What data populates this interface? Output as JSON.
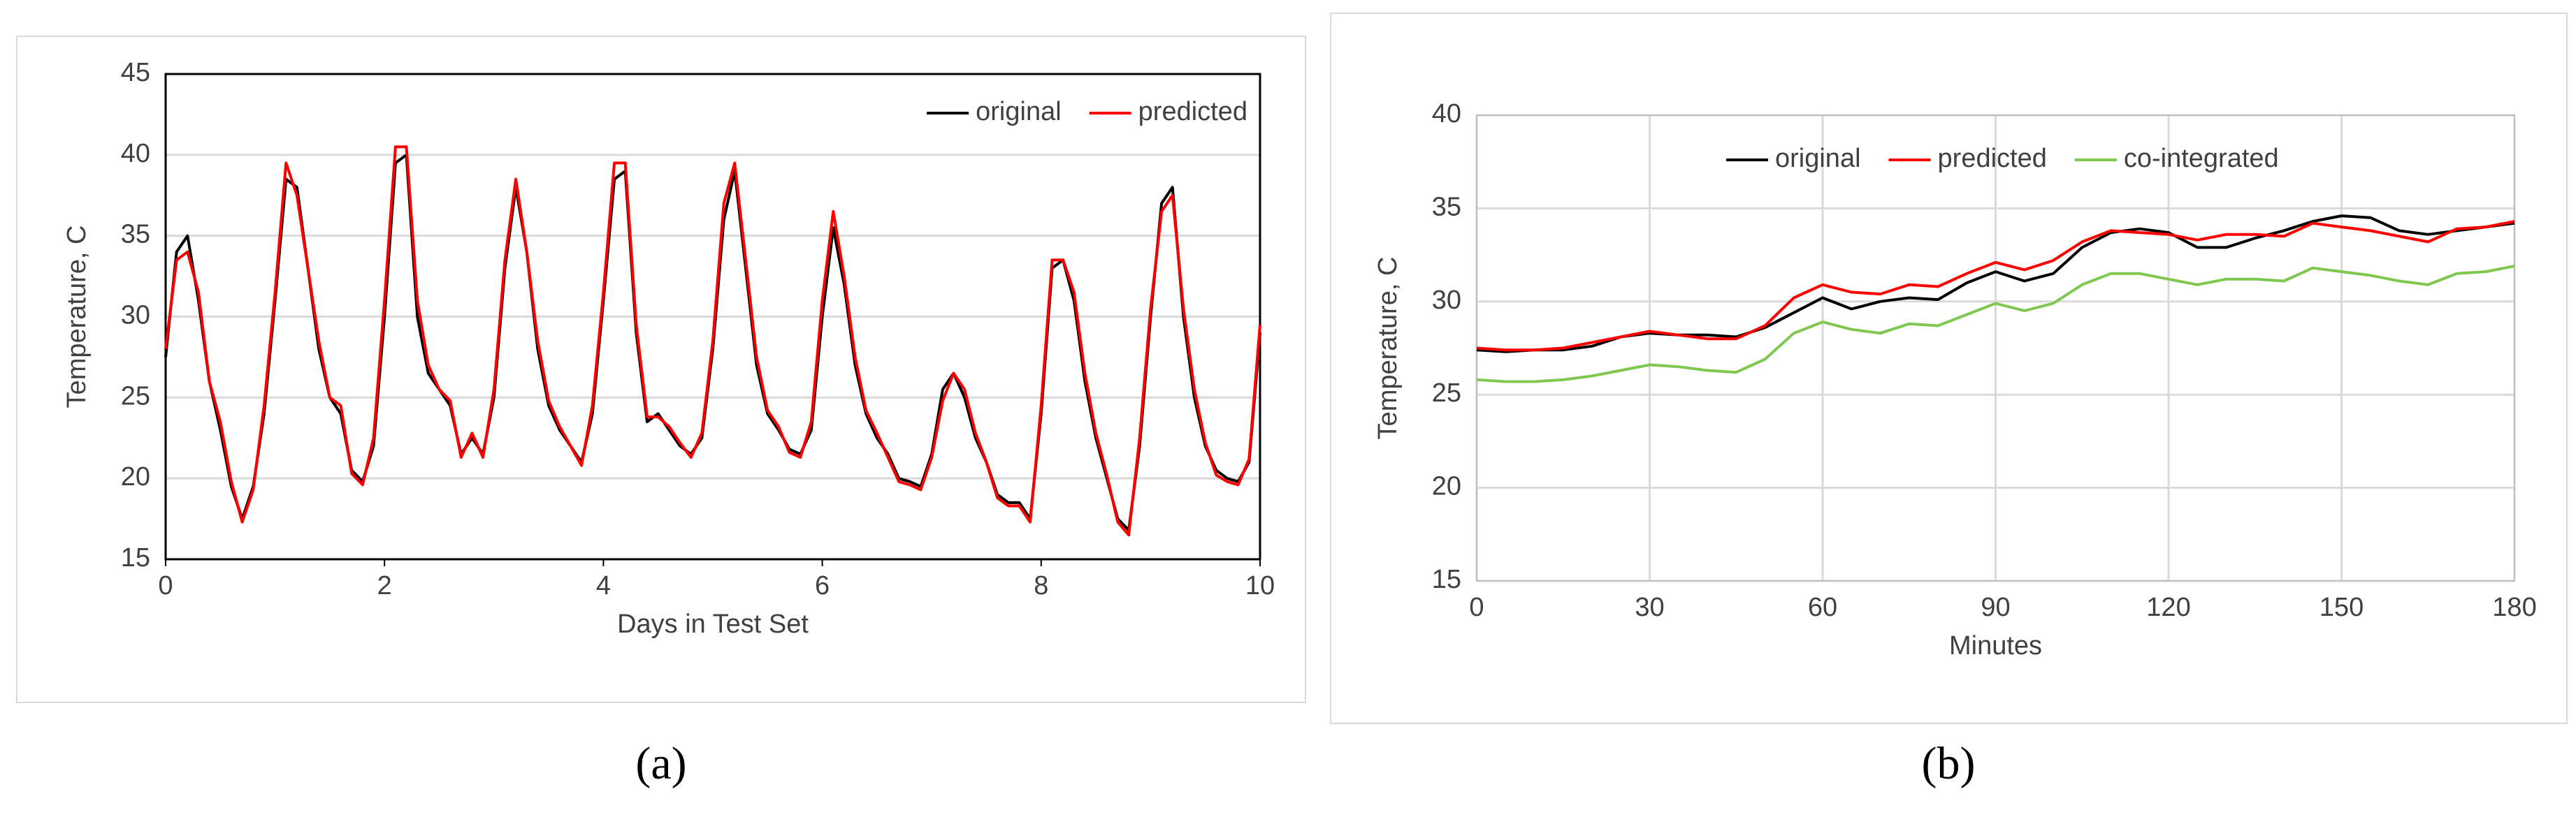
{
  "chart_data": [
    {
      "type": "line",
      "xlabel": "Days in Test Set",
      "ylabel": "Temperature, C",
      "caption": "(a)",
      "xlim": [
        0,
        10
      ],
      "xticks": [
        0,
        2,
        4,
        6,
        8,
        10
      ],
      "ylim": [
        15,
        45
      ],
      "yticks": [
        15,
        20,
        25,
        30,
        35,
        40,
        45
      ],
      "grid": "y",
      "legend": "upper right",
      "x": [
        0,
        0.1,
        0.2,
        0.3,
        0.4,
        0.5,
        0.6,
        0.7,
        0.8,
        0.9,
        1,
        1.1,
        1.2,
        1.3,
        1.4,
        1.5,
        1.6,
        1.7,
        1.8,
        1.9,
        2,
        2.1,
        2.2,
        2.3,
        2.4,
        2.5,
        2.6,
        2.7,
        2.8,
        2.9,
        3,
        3.1,
        3.2,
        3.3,
        3.4,
        3.5,
        3.6,
        3.7,
        3.8,
        3.9,
        4,
        4.1,
        4.2,
        4.3,
        4.4,
        4.5,
        4.6,
        4.7,
        4.8,
        4.9,
        5,
        5.1,
        5.2,
        5.3,
        5.4,
        5.5,
        5.6,
        5.7,
        5.8,
        5.9,
        6,
        6.1,
        6.2,
        6.3,
        6.4,
        6.5,
        6.6,
        6.7,
        6.8,
        6.9,
        7,
        7.1,
        7.2,
        7.3,
        7.4,
        7.5,
        7.6,
        7.7,
        7.8,
        7.9,
        8,
        8.1,
        8.2,
        8.3,
        8.4,
        8.5,
        8.6,
        8.7,
        8.8,
        8.9,
        9,
        9.1,
        9.2,
        9.3,
        9.4,
        9.5,
        9.6,
        9.7,
        9.8,
        9.9,
        10
      ],
      "series": [
        {
          "name": "original",
          "color": "#000000",
          "values": [
            27.5,
            34,
            35,
            31,
            26,
            23,
            19.5,
            17.5,
            19.5,
            24,
            31,
            38.5,
            38,
            33,
            28,
            25,
            24,
            20.5,
            19.8,
            22,
            30,
            39.5,
            40,
            30,
            26.5,
            25.5,
            24.5,
            21.5,
            22.5,
            21.5,
            25,
            33,
            38,
            34,
            28,
            24.5,
            23,
            22,
            21,
            24,
            31,
            38.5,
            39,
            29,
            23.5,
            24,
            23,
            22,
            21.5,
            22.5,
            28,
            36,
            39,
            33,
            27,
            24,
            23,
            21.8,
            21.5,
            23,
            30,
            35.5,
            32,
            27,
            24,
            22.5,
            21.5,
            20,
            19.8,
            19.5,
            21.5,
            25.5,
            26.5,
            25,
            22.5,
            21,
            19,
            18.5,
            18.5,
            17.5,
            24,
            33,
            33.5,
            31,
            26,
            22.5,
            20,
            17.5,
            16.8,
            22,
            30,
            37,
            38,
            30,
            25,
            22,
            20.5,
            20,
            19.8,
            21,
            29
          ]
        },
        {
          "name": "predicted",
          "color": "#ff0000",
          "values": [
            28,
            33.5,
            34,
            31.5,
            26,
            23.5,
            19.8,
            17.3,
            19.3,
            24.5,
            31.5,
            39.5,
            37.5,
            33,
            28.5,
            25,
            24.5,
            20.3,
            19.6,
            22.5,
            31,
            40.5,
            40.5,
            31,
            27,
            25.5,
            24.8,
            21.3,
            22.8,
            21.3,
            25.5,
            33.5,
            38.5,
            34,
            28.5,
            24.8,
            23.2,
            22,
            20.8,
            24.5,
            31.5,
            39.5,
            39.5,
            29.5,
            23.8,
            23.8,
            23.2,
            22.2,
            21.3,
            22.8,
            28.5,
            37,
            39.5,
            33.5,
            27.5,
            24.2,
            23.2,
            21.6,
            21.3,
            23.5,
            31,
            36.5,
            32.5,
            27.5,
            24.2,
            22.8,
            21.3,
            19.8,
            19.6,
            19.3,
            21.3,
            24.8,
            26.5,
            25.5,
            22.8,
            21,
            18.8,
            18.3,
            18.3,
            17.3,
            24.5,
            33.5,
            33.5,
            31.5,
            26.5,
            22.8,
            20.2,
            17.3,
            16.5,
            22.5,
            30.5,
            36.5,
            37.5,
            30.5,
            25.5,
            22.2,
            20.2,
            19.8,
            19.6,
            21.2,
            29.5
          ]
        }
      ]
    },
    {
      "type": "line",
      "xlabel": "Minutes",
      "ylabel": "Temperature, C",
      "caption": "(b)",
      "xlim": [
        0,
        180
      ],
      "xticks": [
        0,
        30,
        60,
        90,
        120,
        150,
        180
      ],
      "ylim": [
        15,
        40
      ],
      "yticks": [
        15,
        20,
        25,
        30,
        35,
        40
      ],
      "grid": "xy",
      "legend": "upper center",
      "x": [
        0,
        5,
        10,
        15,
        20,
        25,
        30,
        35,
        40,
        45,
        50,
        55,
        60,
        65,
        70,
        75,
        80,
        85,
        90,
        95,
        100,
        105,
        110,
        115,
        120,
        125,
        130,
        135,
        140,
        145,
        150,
        155,
        160,
        165,
        170,
        175,
        180
      ],
      "series": [
        {
          "name": "original",
          "color": "#000000",
          "values": [
            27.4,
            27.3,
            27.4,
            27.4,
            27.6,
            28.1,
            28.3,
            28.2,
            28.2,
            28.1,
            28.6,
            29.4,
            30.2,
            29.6,
            30.0,
            30.2,
            30.1,
            31.0,
            31.6,
            31.1,
            31.5,
            32.9,
            33.7,
            33.9,
            33.7,
            32.9,
            32.9,
            33.4,
            33.8,
            34.3,
            34.6,
            34.5,
            33.8,
            33.6,
            33.8,
            34.0,
            34.2
          ]
        },
        {
          "name": "predicted",
          "color": "#ff0000",
          "values": [
            27.5,
            27.4,
            27.4,
            27.5,
            27.8,
            28.1,
            28.4,
            28.2,
            28.0,
            28.0,
            28.7,
            30.2,
            30.9,
            30.5,
            30.4,
            30.9,
            30.8,
            31.5,
            32.1,
            31.7,
            32.2,
            33.2,
            33.8,
            33.7,
            33.6,
            33.3,
            33.6,
            33.6,
            33.5,
            34.2,
            34.0,
            33.8,
            33.5,
            33.2,
            33.9,
            34.0,
            34.3
          ]
        },
        {
          "name": "co-integrated",
          "color": "#7ec850",
          "values": [
            25.8,
            25.7,
            25.7,
            25.8,
            26.0,
            26.3,
            26.6,
            26.5,
            26.3,
            26.2,
            26.9,
            28.3,
            28.9,
            28.5,
            28.3,
            28.8,
            28.7,
            29.3,
            29.9,
            29.5,
            29.9,
            30.9,
            31.5,
            31.5,
            31.2,
            30.9,
            31.2,
            31.2,
            31.1,
            31.8,
            31.6,
            31.4,
            31.1,
            30.9,
            31.5,
            31.6,
            31.9
          ]
        }
      ]
    }
  ]
}
